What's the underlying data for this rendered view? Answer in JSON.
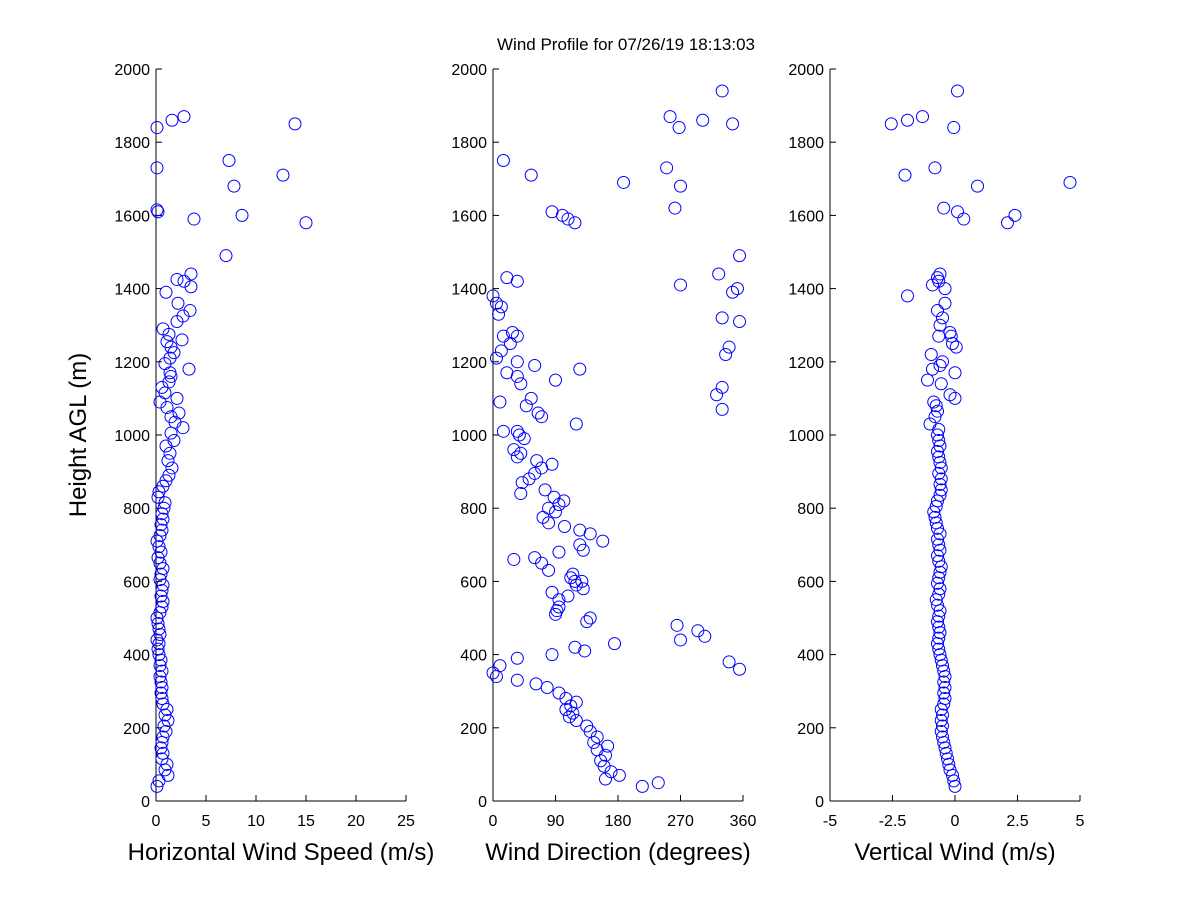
{
  "title": "Wind Profile for  07/26/19 18:13:03",
  "marker_color": "#0000ff",
  "chart_data": [
    {
      "type": "scatter",
      "xlabel": "Horizontal Wind Speed (m/s)",
      "ylabel": "Height AGL (m)",
      "xlim": [
        0,
        25
      ],
      "ylim": [
        0,
        2000
      ],
      "xticks": [
        0,
        5,
        10,
        15,
        20,
        25
      ],
      "yticks": [
        0,
        200,
        400,
        600,
        800,
        1000,
        1200,
        1400,
        1600,
        1800,
        2000
      ],
      "grid": false,
      "points": [
        [
          0.1,
          40
        ],
        [
          0.3,
          55
        ],
        [
          1.2,
          70
        ],
        [
          0.9,
          85
        ],
        [
          1.1,
          100
        ],
        [
          0.6,
          115
        ],
        [
          0.7,
          130
        ],
        [
          0.5,
          145
        ],
        [
          0.6,
          160
        ],
        [
          0.7,
          175
        ],
        [
          1.0,
          190
        ],
        [
          0.8,
          205
        ],
        [
          1.2,
          220
        ],
        [
          0.9,
          235
        ],
        [
          1.1,
          250
        ],
        [
          0.7,
          265
        ],
        [
          0.6,
          280
        ],
        [
          0.5,
          295
        ],
        [
          0.6,
          310
        ],
        [
          0.5,
          325
        ],
        [
          0.4,
          340
        ],
        [
          0.6,
          355
        ],
        [
          0.4,
          370
        ],
        [
          0.5,
          385
        ],
        [
          0.3,
          400
        ],
        [
          0.2,
          415
        ],
        [
          0.3,
          430
        ],
        [
          0.1,
          440
        ],
        [
          0.4,
          455
        ],
        [
          0.3,
          470
        ],
        [
          0.2,
          485
        ],
        [
          0.1,
          500
        ],
        [
          0.4,
          515
        ],
        [
          0.6,
          530
        ],
        [
          0.7,
          545
        ],
        [
          0.5,
          560
        ],
        [
          0.6,
          575
        ],
        [
          0.7,
          590
        ],
        [
          0.4,
          605
        ],
        [
          0.5,
          620
        ],
        [
          0.7,
          635
        ],
        [
          0.4,
          650
        ],
        [
          0.2,
          665
        ],
        [
          0.5,
          680
        ],
        [
          0.3,
          695
        ],
        [
          0.1,
          710
        ],
        [
          0.4,
          725
        ],
        [
          0.6,
          740
        ],
        [
          0.5,
          755
        ],
        [
          0.7,
          770
        ],
        [
          0.6,
          785
        ],
        [
          0.8,
          800
        ],
        [
          0.9,
          815
        ],
        [
          0.2,
          830
        ],
        [
          0.3,
          845
        ],
        [
          0.7,
          860
        ],
        [
          1.0,
          875
        ],
        [
          1.3,
          890
        ],
        [
          1.6,
          910
        ],
        [
          1.2,
          930
        ],
        [
          1.4,
          950
        ],
        [
          1.0,
          970
        ],
        [
          1.8,
          985
        ],
        [
          1.5,
          1005
        ],
        [
          2.7,
          1020
        ],
        [
          1.9,
          1035
        ],
        [
          1.5,
          1050
        ],
        [
          2.3,
          1060
        ],
        [
          1.1,
          1075
        ],
        [
          0.4,
          1090
        ],
        [
          2.1,
          1100
        ],
        [
          0.9,
          1115
        ],
        [
          0.6,
          1130
        ],
        [
          1.3,
          1145
        ],
        [
          1.5,
          1160
        ],
        [
          1.4,
          1170
        ],
        [
          3.3,
          1180
        ],
        [
          0.9,
          1195
        ],
        [
          1.4,
          1210
        ],
        [
          1.8,
          1225
        ],
        [
          1.5,
          1240
        ],
        [
          2.6,
          1260
        ],
        [
          1.1,
          1255
        ],
        [
          1.3,
          1275
        ],
        [
          0.7,
          1290
        ],
        [
          2.1,
          1310
        ],
        [
          2.7,
          1325
        ],
        [
          3.4,
          1340
        ],
        [
          2.2,
          1360
        ],
        [
          1.0,
          1390
        ],
        [
          3.5,
          1405
        ],
        [
          2.8,
          1420
        ],
        [
          2.1,
          1425
        ],
        [
          3.5,
          1440
        ],
        [
          7.0,
          1490
        ],
        [
          15.0,
          1580
        ],
        [
          3.8,
          1590
        ],
        [
          0.2,
          1610
        ],
        [
          8.6,
          1600
        ],
        [
          0.1,
          1615
        ],
        [
          7.8,
          1680
        ],
        [
          12.7,
          1710
        ],
        [
          7.3,
          1750
        ],
        [
          0.1,
          1730
        ],
        [
          0.1,
          1840
        ],
        [
          1.6,
          1860
        ],
        [
          2.8,
          1870
        ],
        [
          13.9,
          1850
        ]
      ]
    },
    {
      "type": "scatter",
      "xlabel": "Wind Direction (degrees)",
      "ylabel": "",
      "xlim": [
        0,
        360
      ],
      "ylim": [
        0,
        2000
      ],
      "xticks": [
        0,
        90,
        180,
        270,
        360
      ],
      "yticks": [
        0,
        200,
        400,
        600,
        800,
        1000,
        1200,
        1400,
        1600,
        1800,
        2000
      ],
      "grid": false,
      "points": [
        [
          215,
          40
        ],
        [
          238,
          50
        ],
        [
          162,
          60
        ],
        [
          182,
          70
        ],
        [
          170,
          80
        ],
        [
          160,
          95
        ],
        [
          155,
          110
        ],
        [
          162,
          125
        ],
        [
          150,
          140
        ],
        [
          165,
          150
        ],
        [
          145,
          160
        ],
        [
          150,
          175
        ],
        [
          140,
          190
        ],
        [
          135,
          205
        ],
        [
          120,
          220
        ],
        [
          110,
          230
        ],
        [
          115,
          240
        ],
        [
          105,
          250
        ],
        [
          112,
          260
        ],
        [
          120,
          270
        ],
        [
          105,
          280
        ],
        [
          95,
          295
        ],
        [
          78,
          310
        ],
        [
          62,
          320
        ],
        [
          35,
          330
        ],
        [
          5,
          340
        ],
        [
          0,
          350
        ],
        [
          10,
          370
        ],
        [
          35,
          390
        ],
        [
          85,
          400
        ],
        [
          132,
          410
        ],
        [
          118,
          420
        ],
        [
          175,
          430
        ],
        [
          270,
          440
        ],
        [
          305,
          450
        ],
        [
          295,
          465
        ],
        [
          265,
          480
        ],
        [
          340,
          380
        ],
        [
          355,
          360
        ],
        [
          90,
          510
        ],
        [
          95,
          530
        ],
        [
          92,
          520
        ],
        [
          135,
          490
        ],
        [
          140,
          500
        ],
        [
          85,
          570
        ],
        [
          95,
          550
        ],
        [
          108,
          560
        ],
        [
          120,
          590
        ],
        [
          130,
          580
        ],
        [
          112,
          610
        ],
        [
          118,
          600
        ],
        [
          128,
          600
        ],
        [
          115,
          620
        ],
        [
          80,
          630
        ],
        [
          70,
          650
        ],
        [
          60,
          665
        ],
        [
          30,
          660
        ],
        [
          95,
          680
        ],
        [
          130,
          685
        ],
        [
          125,
          700
        ],
        [
          158,
          710
        ],
        [
          140,
          730
        ],
        [
          125,
          740
        ],
        [
          103,
          750
        ],
        [
          80,
          760
        ],
        [
          72,
          775
        ],
        [
          90,
          790
        ],
        [
          80,
          800
        ],
        [
          95,
          810
        ],
        [
          102,
          820
        ],
        [
          88,
          830
        ],
        [
          75,
          850
        ],
        [
          40,
          840
        ],
        [
          42,
          870
        ],
        [
          52,
          880
        ],
        [
          60,
          895
        ],
        [
          70,
          910
        ],
        [
          85,
          920
        ],
        [
          63,
          930
        ],
        [
          35,
          940
        ],
        [
          40,
          950
        ],
        [
          30,
          960
        ],
        [
          45,
          990
        ],
        [
          38,
          1000
        ],
        [
          35,
          1010
        ],
        [
          15,
          1010
        ],
        [
          120,
          1030
        ],
        [
          70,
          1050
        ],
        [
          65,
          1060
        ],
        [
          48,
          1080
        ],
        [
          55,
          1100
        ],
        [
          10,
          1090
        ],
        [
          40,
          1140
        ],
        [
          35,
          1160
        ],
        [
          20,
          1170
        ],
        [
          90,
          1150
        ],
        [
          125,
          1180
        ],
        [
          35,
          1200
        ],
        [
          60,
          1190
        ],
        [
          5,
          1210
        ],
        [
          12,
          1230
        ],
        [
          25,
          1250
        ],
        [
          15,
          1270
        ],
        [
          28,
          1280
        ],
        [
          35,
          1270
        ],
        [
          8,
          1330
        ],
        [
          12,
          1350
        ],
        [
          5,
          1360
        ],
        [
          0,
          1380
        ],
        [
          20,
          1430
        ],
        [
          35,
          1420
        ],
        [
          330,
          1070
        ],
        [
          322,
          1110
        ],
        [
          330,
          1130
        ],
        [
          340,
          1240
        ],
        [
          335,
          1220
        ],
        [
          330,
          1320
        ],
        [
          355,
          1310
        ],
        [
          345,
          1390
        ],
        [
          352,
          1400
        ],
        [
          325,
          1440
        ],
        [
          270,
          1410
        ],
        [
          355,
          1490
        ],
        [
          85,
          1610
        ],
        [
          100,
          1600
        ],
        [
          108,
          1590
        ],
        [
          118,
          1580
        ],
        [
          55,
          1710
        ],
        [
          15,
          1750
        ],
        [
          188,
          1690
        ],
        [
          250,
          1730
        ],
        [
          270,
          1680
        ],
        [
          262,
          1620
        ],
        [
          255,
          1870
        ],
        [
          268,
          1840
        ],
        [
          302,
          1860
        ],
        [
          345,
          1850
        ],
        [
          330,
          1940
        ]
      ]
    },
    {
      "type": "scatter",
      "xlabel": "Vertical Wind (m/s)",
      "ylabel": "",
      "xlim": [
        -5,
        5
      ],
      "ylim": [
        0,
        2000
      ],
      "xticks": [
        -5,
        -2.5,
        0,
        2.5,
        5
      ],
      "yticks": [
        0,
        200,
        400,
        600,
        800,
        1000,
        1200,
        1400,
        1600,
        1800,
        2000
      ],
      "grid": false,
      "points": [
        [
          0.0,
          40
        ],
        [
          -0.05,
          55
        ],
        [
          -0.1,
          70
        ],
        [
          -0.2,
          85
        ],
        [
          -0.25,
          100
        ],
        [
          -0.3,
          115
        ],
        [
          -0.35,
          130
        ],
        [
          -0.4,
          145
        ],
        [
          -0.45,
          160
        ],
        [
          -0.5,
          175
        ],
        [
          -0.55,
          190
        ],
        [
          -0.5,
          205
        ],
        [
          -0.55,
          220
        ],
        [
          -0.5,
          235
        ],
        [
          -0.55,
          250
        ],
        [
          -0.45,
          265
        ],
        [
          -0.4,
          280
        ],
        [
          -0.45,
          295
        ],
        [
          -0.4,
          310
        ],
        [
          -0.45,
          325
        ],
        [
          -0.4,
          340
        ],
        [
          -0.45,
          355
        ],
        [
          -0.5,
          370
        ],
        [
          -0.55,
          385
        ],
        [
          -0.6,
          400
        ],
        [
          -0.65,
          415
        ],
        [
          -0.7,
          430
        ],
        [
          -0.65,
          445
        ],
        [
          -0.6,
          460
        ],
        [
          -0.65,
          475
        ],
        [
          -0.7,
          490
        ],
        [
          -0.65,
          505
        ],
        [
          -0.6,
          520
        ],
        [
          -0.7,
          535
        ],
        [
          -0.75,
          550
        ],
        [
          -0.65,
          565
        ],
        [
          -0.6,
          580
        ],
        [
          -0.7,
          595
        ],
        [
          -0.65,
          610
        ],
        [
          -0.6,
          625
        ],
        [
          -0.55,
          640
        ],
        [
          -0.65,
          655
        ],
        [
          -0.7,
          670
        ],
        [
          -0.6,
          685
        ],
        [
          -0.65,
          700
        ],
        [
          -0.7,
          715
        ],
        [
          -0.6,
          730
        ],
        [
          -0.7,
          745
        ],
        [
          -0.75,
          760
        ],
        [
          -0.8,
          775
        ],
        [
          -0.85,
          790
        ],
        [
          -0.75,
          805
        ],
        [
          -0.7,
          820
        ],
        [
          -0.6,
          835
        ],
        [
          -0.55,
          850
        ],
        [
          -0.6,
          865
        ],
        [
          -0.55,
          880
        ],
        [
          -0.65,
          895
        ],
        [
          -0.55,
          910
        ],
        [
          -0.6,
          925
        ],
        [
          -0.65,
          940
        ],
        [
          -0.7,
          955
        ],
        [
          -0.6,
          970
        ],
        [
          -0.65,
          985
        ],
        [
          -0.7,
          1000
        ],
        [
          -0.65,
          1015
        ],
        [
          -1.0,
          1030
        ],
        [
          -0.8,
          1050
        ],
        [
          -0.7,
          1065
        ],
        [
          -0.75,
          1080
        ],
        [
          -0.85,
          1090
        ],
        [
          0.0,
          1100
        ],
        [
          -0.2,
          1110
        ],
        [
          -1.1,
          1150
        ],
        [
          -0.55,
          1140
        ],
        [
          -0.9,
          1180
        ],
        [
          0.0,
          1170
        ],
        [
          -0.5,
          1200
        ],
        [
          -0.6,
          1190
        ],
        [
          -0.95,
          1220
        ],
        [
          0.05,
          1240
        ],
        [
          -0.1,
          1250
        ],
        [
          -0.15,
          1270
        ],
        [
          -0.2,
          1280
        ],
        [
          -0.65,
          1270
        ],
        [
          -0.6,
          1300
        ],
        [
          -0.5,
          1320
        ],
        [
          -0.7,
          1340
        ],
        [
          -0.4,
          1360
        ],
        [
          -1.9,
          1380
        ],
        [
          -0.4,
          1400
        ],
        [
          -0.9,
          1410
        ],
        [
          -0.65,
          1420
        ],
        [
          -0.7,
          1430
        ],
        [
          -0.6,
          1440
        ],
        [
          -2.0,
          1710
        ],
        [
          -0.8,
          1730
        ],
        [
          0.9,
          1680
        ],
        [
          4.6,
          1690
        ],
        [
          -0.45,
          1620
        ],
        [
          0.1,
          1610
        ],
        [
          0.35,
          1590
        ],
        [
          2.1,
          1580
        ],
        [
          2.4,
          1600
        ],
        [
          -0.05,
          1840
        ],
        [
          0.1,
          1940
        ],
        [
          -2.55,
          1850
        ],
        [
          -1.9,
          1860
        ],
        [
          -1.3,
          1870
        ]
      ]
    }
  ]
}
